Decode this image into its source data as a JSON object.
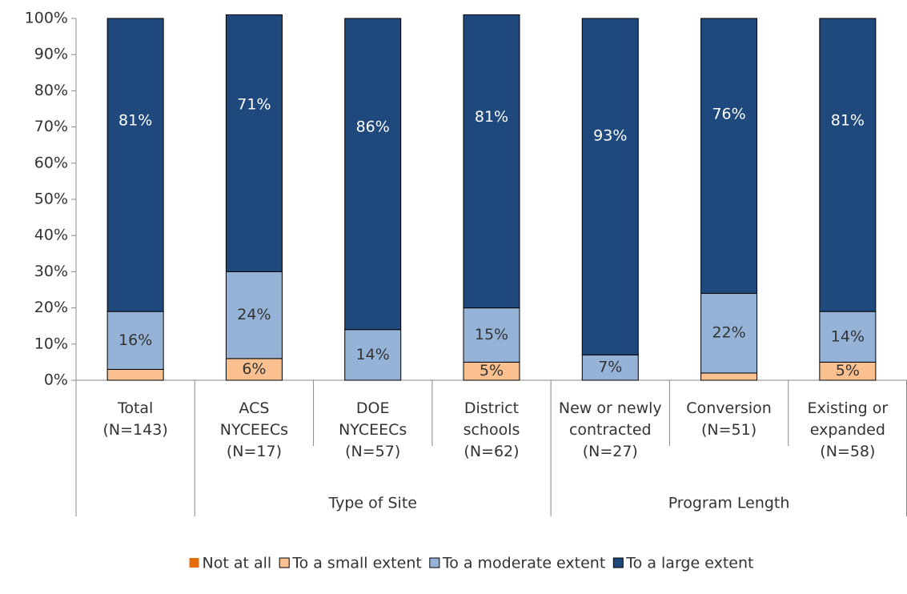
{
  "chart_data": {
    "type": "stacked_bar",
    "categories": [
      [
        "Total",
        "(N=143)"
      ],
      [
        "ACS",
        "NYCEECs",
        "(N=17)"
      ],
      [
        "DOE",
        "NYCEECs",
        "(N=57)"
      ],
      [
        "District",
        "schools",
        "(N=62)"
      ],
      [
        "New or newly",
        "contracted",
        "(N=27)"
      ],
      [
        "Conversion",
        "(N=51)"
      ],
      [
        "Existing or",
        "expanded",
        "(N=58)"
      ]
    ],
    "group_labels": [
      "Type of Site",
      "Program Length"
    ],
    "series": [
      {
        "name": "Not at all",
        "color": "#e46c0a",
        "values": [
          0,
          0,
          0,
          0,
          0,
          0,
          0
        ]
      },
      {
        "name": "To a small extent",
        "color": "#fac090",
        "values": [
          3,
          6,
          0,
          5,
          0,
          2,
          5
        ],
        "value_labels": [
          null,
          "6%",
          null,
          "5%",
          null,
          null,
          "5%"
        ]
      },
      {
        "name": "To a moderate extent",
        "color": "#95b3d7",
        "values": [
          16,
          24,
          14,
          15,
          7,
          22,
          14
        ],
        "value_labels": [
          "16%",
          "24%",
          "14%",
          "15%",
          "7%",
          "22%",
          "14%"
        ]
      },
      {
        "name": "To a large extent",
        "color": "#1f497d",
        "values": [
          81,
          71,
          86,
          81,
          93,
          76,
          81
        ],
        "value_labels": [
          "81%",
          "71%",
          "86%",
          "81%",
          "93%",
          "76%",
          "81%"
        ]
      }
    ],
    "ylim": [
      0,
      100
    ],
    "yticks": [
      {
        "value": 0,
        "label": "0%"
      },
      {
        "value": 10,
        "label": "10%"
      },
      {
        "value": 20,
        "label": "20%"
      },
      {
        "value": 30,
        "label": "30%"
      },
      {
        "value": 40,
        "label": "40%"
      },
      {
        "value": 50,
        "label": "50%"
      },
      {
        "value": 60,
        "label": "60%"
      },
      {
        "value": 70,
        "label": "70%"
      },
      {
        "value": 80,
        "label": "80%"
      },
      {
        "value": 90,
        "label": "90%"
      },
      {
        "value": 100,
        "label": "100%"
      }
    ],
    "grid": false,
    "legend": "bottom"
  }
}
